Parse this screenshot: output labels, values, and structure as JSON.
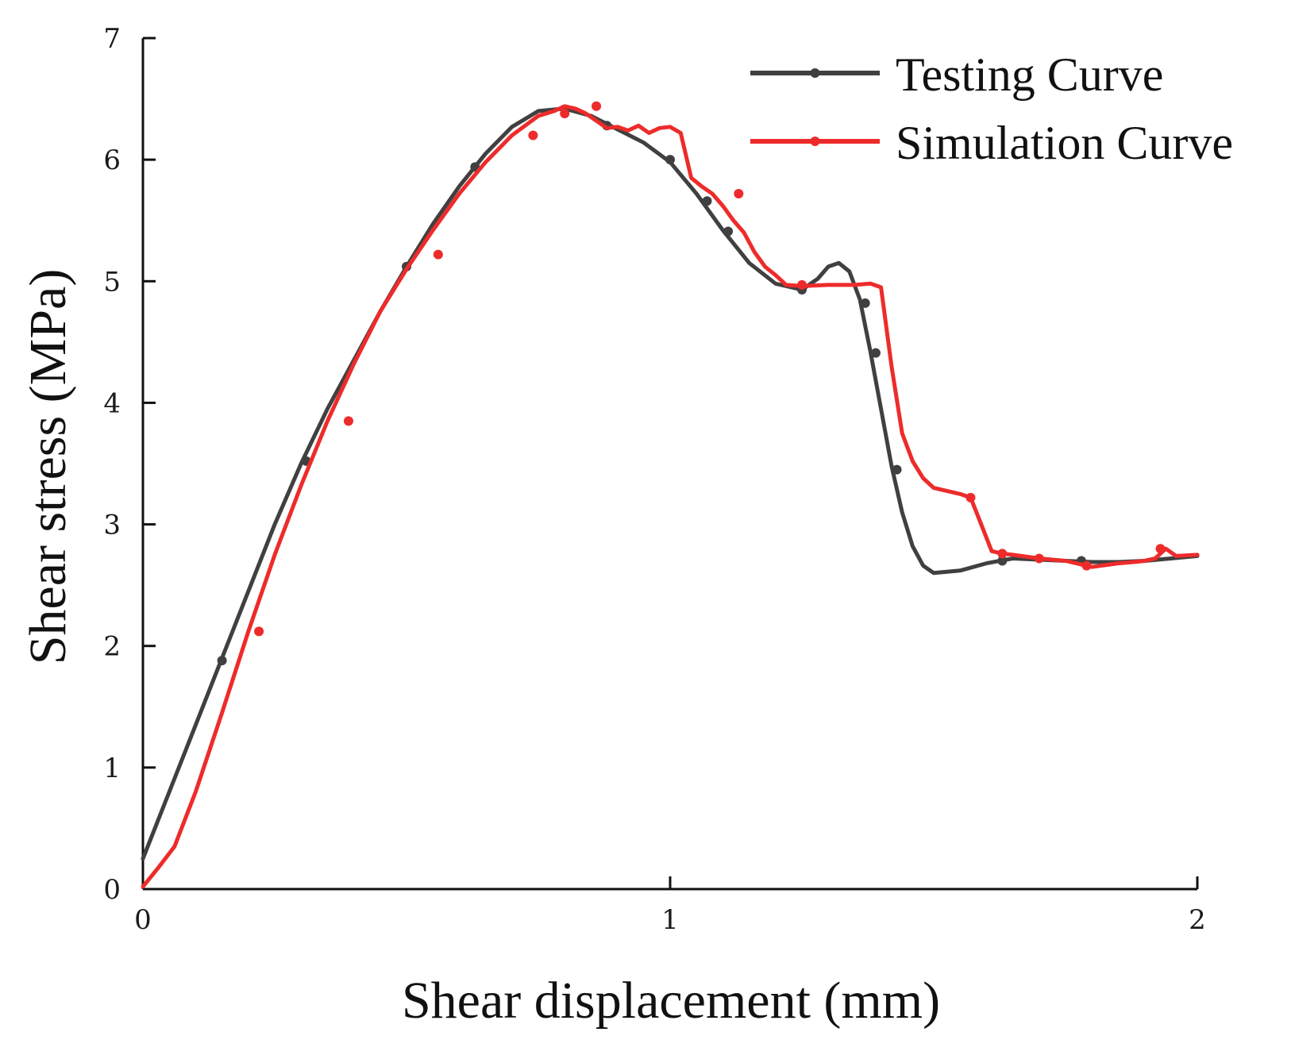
{
  "chart_data": {
    "type": "line",
    "title": "",
    "xlabel": "Shear displacement (mm)",
    "ylabel": "Shear stress (MPa)",
    "xlim": [
      0,
      2
    ],
    "ylim": [
      0,
      7
    ],
    "xticks": [
      0,
      1,
      2
    ],
    "xtick_labels": [
      "0",
      "1",
      "2"
    ],
    "yticks": [
      0,
      1,
      2,
      3,
      4,
      5,
      6,
      7
    ],
    "ytick_labels": [
      "0",
      "1",
      "2",
      "3",
      "4",
      "5",
      "6",
      "7"
    ],
    "grid": false,
    "legend_position": "top-right",
    "series": [
      {
        "name": "Testing Curve",
        "color": "#404040",
        "x": [
          0,
          0.05,
          0.1,
          0.15,
          0.2,
          0.25,
          0.3,
          0.35,
          0.4,
          0.45,
          0.5,
          0.55,
          0.6,
          0.65,
          0.7,
          0.75,
          0.8,
          0.85,
          0.9,
          0.95,
          1.0,
          1.05,
          1.1,
          1.15,
          1.2,
          1.25,
          1.28,
          1.3,
          1.32,
          1.34,
          1.36,
          1.38,
          1.4,
          1.42,
          1.44,
          1.46,
          1.48,
          1.5,
          1.55,
          1.6,
          1.65,
          1.7,
          1.75,
          1.8,
          1.85,
          1.9,
          1.95,
          2.0
        ],
        "y": [
          0.25,
          0.8,
          1.35,
          1.9,
          2.45,
          3.0,
          3.5,
          3.95,
          4.35,
          4.75,
          5.12,
          5.47,
          5.78,
          6.05,
          6.27,
          6.4,
          6.42,
          6.36,
          6.25,
          6.14,
          5.98,
          5.72,
          5.42,
          5.15,
          4.98,
          4.93,
          5.02,
          5.12,
          5.15,
          5.08,
          4.85,
          4.42,
          3.95,
          3.48,
          3.1,
          2.82,
          2.66,
          2.6,
          2.62,
          2.68,
          2.72,
          2.71,
          2.7,
          2.69,
          2.69,
          2.7,
          2.72,
          2.74
        ],
        "marker_x": [
          0.15,
          0.31,
          0.5,
          0.63,
          0.88,
          1.0,
          1.07,
          1.11,
          1.25,
          1.37,
          1.39,
          1.43,
          1.63,
          1.78
        ],
        "marker_y": [
          1.88,
          3.52,
          5.12,
          5.94,
          6.28,
          6.0,
          5.66,
          5.41,
          4.93,
          4.82,
          4.41,
          3.45,
          2.7,
          2.7
        ]
      },
      {
        "name": "Simulation Curve",
        "color": "#ee2b2b",
        "x": [
          0,
          0.03,
          0.06,
          0.1,
          0.15,
          0.2,
          0.25,
          0.3,
          0.35,
          0.4,
          0.45,
          0.5,
          0.55,
          0.6,
          0.65,
          0.7,
          0.75,
          0.78,
          0.8,
          0.82,
          0.84,
          0.86,
          0.88,
          0.9,
          0.92,
          0.94,
          0.96,
          0.98,
          1.0,
          1.02,
          1.04,
          1.06,
          1.08,
          1.1,
          1.12,
          1.14,
          1.16,
          1.18,
          1.2,
          1.22,
          1.25,
          1.3,
          1.35,
          1.38,
          1.4,
          1.42,
          1.44,
          1.46,
          1.48,
          1.5,
          1.52,
          1.55,
          1.57,
          1.59,
          1.61,
          1.63,
          1.65,
          1.7,
          1.75,
          1.78,
          1.8,
          1.85,
          1.88,
          1.9,
          1.92,
          1.94,
          1.96,
          2.0
        ],
        "y": [
          0.02,
          0.18,
          0.35,
          0.8,
          1.45,
          2.12,
          2.75,
          3.32,
          3.85,
          4.32,
          4.75,
          5.1,
          5.42,
          5.72,
          5.98,
          6.2,
          6.36,
          6.4,
          6.44,
          6.42,
          6.38,
          6.32,
          6.26,
          6.27,
          6.24,
          6.28,
          6.22,
          6.26,
          6.27,
          6.22,
          5.85,
          5.78,
          5.72,
          5.62,
          5.5,
          5.4,
          5.24,
          5.12,
          5.05,
          4.97,
          4.96,
          4.97,
          4.97,
          4.98,
          4.95,
          4.3,
          3.75,
          3.52,
          3.38,
          3.3,
          3.28,
          3.25,
          3.22,
          3.0,
          2.78,
          2.76,
          2.75,
          2.72,
          2.7,
          2.67,
          2.65,
          2.68,
          2.69,
          2.7,
          2.72,
          2.8,
          2.74,
          2.75
        ],
        "marker_x": [
          0.22,
          0.39,
          0.56,
          0.74,
          0.8,
          0.86,
          1.13,
          1.25,
          1.57,
          1.63,
          1.7,
          1.79,
          1.93
        ],
        "marker_y": [
          2.12,
          3.85,
          5.22,
          6.2,
          6.38,
          6.44,
          5.72,
          4.97,
          3.22,
          2.76,
          2.72,
          2.66,
          2.8
        ]
      }
    ]
  }
}
